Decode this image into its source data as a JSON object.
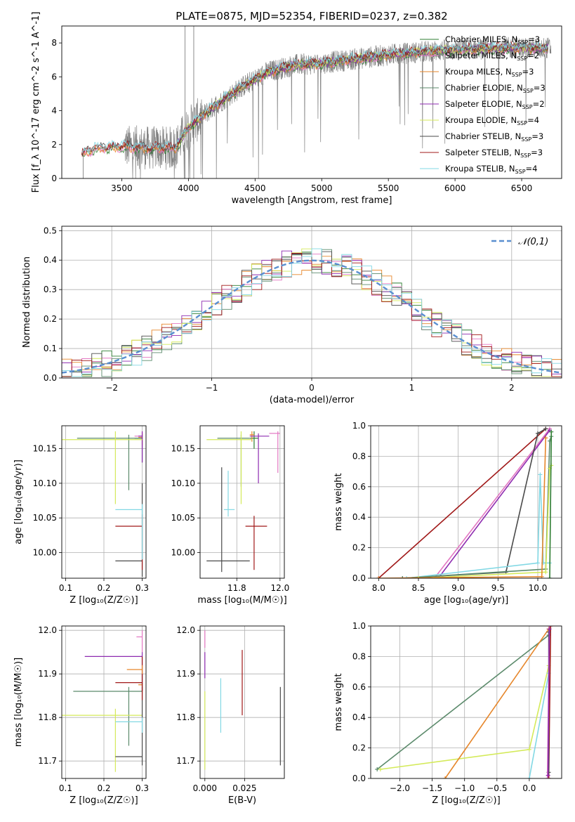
{
  "colors": {
    "Chabrier MILES": "#2e7d32",
    "Salpeter MILES": "#e377c2",
    "Kroupa MILES": "#e6862a",
    "Chabrier ELODIE": "#5b8a6b",
    "Salpeter ELODIE": "#8e2bb0",
    "Kroupa ELODIE": "#d4ea5a",
    "Chabrier STELIB": "#4a4a4a",
    "Salpeter STELIB": "#a01818",
    "Kroupa STELIB": "#82d8e4",
    "gaussian": "#5a8fd0"
  },
  "chart_data": [
    {
      "id": "spectrum",
      "type": "line",
      "title": "PLATE=0875, MJD=52354, FIBERID=0237, z=0.382",
      "xlabel": "wavelength [Angstrom, rest frame]",
      "ylabel": "Flux [f_λ 10^-17 erg cm^-2 s^-1 A^-1]",
      "xlim": [
        3050,
        6800
      ],
      "ylim": [
        0,
        9
      ],
      "xticks": [
        3500,
        4000,
        4500,
        5000,
        5500,
        6000,
        6500
      ],
      "yticks": [
        0,
        2,
        4,
        6,
        8
      ],
      "legend_position": "upper-right",
      "legend": [
        {
          "series": "Chabrier MILES",
          "label": "Chabrier MILES, N",
          "sub": "SSP",
          "tail": "=3"
        },
        {
          "series": "Salpeter MILES",
          "label": "Salpeter MILES, N",
          "sub": "SSP",
          "tail": "=2"
        },
        {
          "series": "Kroupa MILES",
          "label": "Kroupa MILES, N",
          "sub": "SSP",
          "tail": "=3"
        },
        {
          "series": "Chabrier ELODIE",
          "label": "Chabrier ELODIE, N",
          "sub": "SSP",
          "tail": "=3"
        },
        {
          "series": "Salpeter ELODIE",
          "label": "Salpeter ELODIE, N",
          "sub": "SSP",
          "tail": "=2"
        },
        {
          "series": "Kroupa ELODIE",
          "label": "Kroupa ELODIE, N",
          "sub": "SSP",
          "tail": "=4"
        },
        {
          "series": "Chabrier STELIB",
          "label": "Chabrier STELIB, N",
          "sub": "SSP",
          "tail": "=3"
        },
        {
          "series": "Salpeter STELIB",
          "label": "Salpeter STELIB, N",
          "sub": "SSP",
          "tail": "=3"
        },
        {
          "series": "Kroupa STELIB",
          "label": "Kroupa STELIB, N",
          "sub": "SSP",
          "tail": "=4"
        }
      ],
      "observed_color": "#808080",
      "continuum_knots": [
        [
          3200,
          1.4
        ],
        [
          3300,
          1.8
        ],
        [
          3500,
          1.9
        ],
        [
          3700,
          1.8
        ],
        [
          3900,
          1.8
        ],
        [
          4000,
          3.0
        ],
        [
          4200,
          4.3
        ],
        [
          4400,
          5.4
        ],
        [
          4600,
          6.3
        ],
        [
          4800,
          6.7
        ],
        [
          5000,
          6.8
        ],
        [
          5200,
          7.0
        ],
        [
          5500,
          7.3
        ],
        [
          5800,
          7.5
        ],
        [
          6000,
          7.6
        ],
        [
          6300,
          7.7
        ],
        [
          6700,
          7.7
        ]
      ]
    },
    {
      "id": "residuals",
      "type": "histogram",
      "xlabel": "(data-model)/error",
      "ylabel": "Normed distribution",
      "xlim": [
        -2.5,
        2.5
      ],
      "ylim": [
        0,
        0.515
      ],
      "xticks": [
        -2,
        -1,
        0,
        1,
        2
      ],
      "yticks": [
        0,
        0.1,
        0.2,
        0.3,
        0.4,
        0.5
      ],
      "ytick_labels": [
        "0.0",
        "0.1",
        "0.2",
        "0.3",
        "0.4",
        "0.5"
      ],
      "legend_label": "𝒩(0,1)",
      "legend_position": "upper-right",
      "bin_width": 0.1,
      "bin_start": -2.5
    },
    {
      "id": "age_vs_Z",
      "type": "errorbar",
      "xlabel": "Z [log₁₀(Z/Z☉)]",
      "ylabel": "age  [log₁₀(age/yr)]",
      "xlim": [
        0.09,
        0.31
      ],
      "ylim": [
        9.963,
        10.183
      ],
      "xticks": [
        0.1,
        0.2,
        0.3
      ],
      "xtick_labels": [
        "0.1",
        "0.2",
        "0.3"
      ],
      "yticks": [
        10.0,
        10.05,
        10.1,
        10.15
      ],
      "ytick_labels": [
        "10.00",
        "10.05",
        "10.10",
        "10.15"
      ],
      "points": [
        {
          "series": "Chabrier MILES",
          "x": 0.3,
          "y": 10.165,
          "xlo": 0.28,
          "xhi": 0.3,
          "ylo": 10.13,
          "yhi": 10.17
        },
        {
          "series": "Salpeter MILES",
          "x": 0.3,
          "y": 10.168,
          "xlo": 0.28,
          "xhi": 0.3,
          "ylo": 10.15,
          "yhi": 10.175
        },
        {
          "series": "Kroupa MILES",
          "x": 0.3,
          "y": 10.166,
          "xlo": 0.29,
          "xhi": 0.3,
          "ylo": 10.155,
          "yhi": 10.172
        },
        {
          "series": "Chabrier ELODIE",
          "x": 0.265,
          "y": 10.165,
          "xlo": 0.13,
          "xhi": 0.3,
          "ylo": 10.09,
          "yhi": 10.17
        },
        {
          "series": "Salpeter ELODIE",
          "x": 0.3,
          "y": 10.168,
          "xlo": 0.29,
          "xhi": 0.3,
          "ylo": 10.13,
          "yhi": 10.175
        },
        {
          "series": "Kroupa ELODIE",
          "x": 0.23,
          "y": 10.163,
          "xlo": 0.09,
          "xhi": 0.3,
          "ylo": 10.07,
          "yhi": 10.175
        },
        {
          "series": "Chabrier STELIB",
          "x": 0.3,
          "y": 9.988,
          "xlo": 0.23,
          "xhi": 0.3,
          "ylo": 9.965,
          "yhi": 10.1
        },
        {
          "series": "Salpeter STELIB",
          "x": 0.3,
          "y": 10.038,
          "xlo": 0.23,
          "xhi": 0.3,
          "ylo": 9.975,
          "yhi": 10.055
        },
        {
          "series": "Kroupa STELIB",
          "x": 0.3,
          "y": 10.062,
          "xlo": 0.23,
          "xhi": 0.3,
          "ylo": 9.99,
          "yhi": 10.07
        }
      ]
    },
    {
      "id": "age_vs_mass",
      "type": "errorbar",
      "xlabel": "mass [log₁₀(M/M☉)]",
      "ylabel": "",
      "xlim": [
        11.63,
        12.02
      ],
      "ylim": [
        9.963,
        10.183
      ],
      "xticks": [
        11.8,
        12.0
      ],
      "xtick_labels": [
        "11.8",
        "12.0"
      ],
      "yticks": [
        10.0,
        10.05,
        10.1,
        10.15
      ],
      "ytick_labels": [
        "10.00",
        "10.05",
        "10.10",
        "10.15"
      ],
      "points": [
        {
          "series": "Chabrier MILES",
          "x": 11.88,
          "y": 10.165,
          "xlo": 11.86,
          "xhi": 11.9,
          "ylo": 10.15,
          "yhi": 10.175
        },
        {
          "series": "Salpeter MILES",
          "x": 11.99,
          "y": 10.172,
          "xlo": 11.95,
          "xhi": 12.0,
          "ylo": 10.115,
          "yhi": 10.175
        },
        {
          "series": "Kroupa MILES",
          "x": 11.87,
          "y": 10.17,
          "xlo": 11.86,
          "xhi": 11.88,
          "ylo": 10.16,
          "yhi": 10.175
        },
        {
          "series": "Chabrier ELODIE",
          "x": 11.82,
          "y": 10.165,
          "xlo": 11.71,
          "xhi": 11.86,
          "ylo": 10.095,
          "yhi": 10.17
        },
        {
          "series": "Salpeter ELODIE",
          "x": 11.9,
          "y": 10.168,
          "xlo": 11.86,
          "xhi": 11.95,
          "ylo": 10.1,
          "yhi": 10.172
        },
        {
          "series": "Kroupa ELODIE",
          "x": 11.82,
          "y": 10.163,
          "xlo": 11.66,
          "xhi": 11.87,
          "ylo": 10.07,
          "yhi": 10.175
        },
        {
          "series": "Chabrier STELIB",
          "x": 11.73,
          "y": 9.988,
          "xlo": 11.66,
          "xhi": 11.86,
          "ylo": 9.972,
          "yhi": 10.123
        },
        {
          "series": "Salpeter STELIB",
          "x": 11.88,
          "y": 10.038,
          "xlo": 11.84,
          "xhi": 11.94,
          "ylo": 9.975,
          "yhi": 10.053
        },
        {
          "series": "Kroupa STELIB",
          "x": 11.76,
          "y": 10.062,
          "xlo": 11.74,
          "xhi": 11.79,
          "ylo": 10.052,
          "yhi": 10.118
        }
      ]
    },
    {
      "id": "mass_weight_vs_age",
      "type": "line",
      "xlabel": "age  [log₁₀(age/yr)]",
      "ylabel": "mass weight",
      "xlim": [
        7.9,
        10.3
      ],
      "ylim": [
        0,
        1
      ],
      "xticks": [
        8.0,
        8.5,
        9.0,
        9.5,
        10.0
      ],
      "xtick_labels": [
        "8.0",
        "8.5",
        "9.0",
        "9.5",
        "10.0"
      ],
      "yticks": [
        0,
        0.2,
        0.4,
        0.6,
        0.8,
        1.0
      ],
      "ytick_labels": [
        "0.0",
        "0.2",
        "0.4",
        "0.6",
        "0.8",
        "1.0"
      ],
      "lines": [
        {
          "series": "Salpeter STELIB",
          "x": [
            8.0,
            10.1
          ],
          "y": [
            0.0,
            0.98
          ]
        },
        {
          "series": "Salpeter MILES",
          "x": [
            8.7,
            10.15
          ],
          "y": [
            0.0,
            0.98
          ]
        },
        {
          "series": "Salpeter ELODIE",
          "x": [
            8.75,
            10.15
          ],
          "y": [
            0.0,
            0.97
          ]
        },
        {
          "series": "Chabrier STELIB",
          "x": [
            8.3,
            9.6,
            10.0,
            10.1
          ],
          "y": [
            0.0,
            0.04,
            0.95,
            0.98
          ]
        },
        {
          "series": "Kroupa STELIB",
          "x": [
            8.35,
            10.0,
            10.03,
            10.07,
            10.15
          ],
          "y": [
            0.0,
            0.1,
            0.68,
            0.1,
            0.1
          ]
        },
        {
          "series": "Chabrier ELODIE",
          "x": [
            8.3,
            10.1,
            10.15,
            10.17
          ],
          "y": [
            0.0,
            0.06,
            0.9,
            0.93
          ]
        },
        {
          "series": "Kroupa ELODIE",
          "x": [
            8.5,
            10.1,
            10.15,
            10.17
          ],
          "y": [
            0.0,
            0.04,
            0.72,
            0.74
          ]
        },
        {
          "series": "Kroupa MILES",
          "x": [
            8.0,
            10.05,
            10.1
          ],
          "y": [
            0.0,
            0.01,
            0.92
          ]
        },
        {
          "series": "Chabrier MILES",
          "x": [
            10.15,
            10.17
          ],
          "y": [
            0.0,
            0.96
          ]
        }
      ]
    },
    {
      "id": "mass_vs_Z",
      "type": "errorbar",
      "xlabel": "Z [log₁₀(Z/Z☉)]",
      "ylabel": "mass [log₁₀(M/M☉)]",
      "xlim": [
        0.09,
        0.31
      ],
      "ylim": [
        11.66,
        12.01
      ],
      "xticks": [
        0.1,
        0.2,
        0.3
      ],
      "xtick_labels": [
        "0.1",
        "0.2",
        "0.3"
      ],
      "yticks": [
        11.7,
        11.8,
        11.9,
        12.0
      ],
      "ytick_labels": [
        "11.7",
        "11.8",
        "11.9",
        "12.0"
      ],
      "points": [
        {
          "series": "Chabrier MILES",
          "x": 0.3,
          "y": 11.88,
          "xlo": 0.29,
          "xhi": 0.3,
          "ylo": 11.86,
          "yhi": 11.9
        },
        {
          "series": "Salpeter MILES",
          "x": 0.3,
          "y": 11.985,
          "xlo": 0.285,
          "xhi": 0.3,
          "ylo": 11.95,
          "yhi": 12.0
        },
        {
          "series": "Kroupa MILES",
          "x": 0.3,
          "y": 11.875,
          "xlo": 0.29,
          "xhi": 0.3,
          "ylo": 11.86,
          "yhi": 11.88
        },
        {
          "series": "Chabrier ELODIE",
          "x": 0.265,
          "y": 11.86,
          "xlo": 0.12,
          "xhi": 0.3,
          "ylo": 11.735,
          "yhi": 11.87
        },
        {
          "series": "Salpeter ELODIE",
          "x": 0.3,
          "y": 11.94,
          "xlo": 0.15,
          "xhi": 0.3,
          "ylo": 11.86,
          "yhi": 11.95
        },
        {
          "series": "Kroupa ELODIE",
          "x": 0.23,
          "y": 11.805,
          "xlo": 0.09,
          "xhi": 0.3,
          "ylo": 11.675,
          "yhi": 11.82
        },
        {
          "series": "Chabrier STELIB",
          "x": 0.3,
          "y": 11.71,
          "xlo": 0.23,
          "xhi": 0.3,
          "ylo": 11.69,
          "yhi": 11.87
        },
        {
          "series": "Salpeter STELIB",
          "x": 0.3,
          "y": 11.88,
          "xlo": 0.23,
          "xhi": 0.3,
          "ylo": 11.84,
          "yhi": 11.94
        },
        {
          "series": "Kroupa STELIB",
          "x": 0.3,
          "y": 11.79,
          "xlo": 0.23,
          "xhi": 0.3,
          "ylo": 11.765,
          "yhi": 11.8
        },
        {
          "series": "Kroupa MILES",
          "x": 0.3,
          "y": 11.91,
          "xlo": 0.26,
          "xhi": 0.3,
          "ylo": 11.9,
          "yhi": 11.92
        }
      ]
    },
    {
      "id": "mass_vs_ebv",
      "type": "errorbar",
      "xlabel": "E(B-V)",
      "ylabel": "",
      "xlim": [
        -0.003,
        0.05
      ],
      "ylim": [
        11.66,
        12.01
      ],
      "xticks": [
        0.0,
        0.025
      ],
      "xtick_labels": [
        "0.000",
        "0.025"
      ],
      "yticks": [
        11.7,
        11.8,
        11.9,
        12.0
      ],
      "ytick_labels": [
        "11.7",
        "11.8",
        "11.9",
        "12.0"
      ],
      "points": [
        {
          "series": "Salpeter ELODIE",
          "x": 0.0,
          "y": 11.92,
          "xlo": 0.0,
          "xhi": 0.0,
          "ylo": 11.89,
          "yhi": 11.95
        },
        {
          "series": "Kroupa ELODIE",
          "x": 0.0,
          "y": 11.8,
          "xlo": 0.0,
          "xhi": 0.0,
          "ylo": 11.68,
          "yhi": 11.86
        },
        {
          "series": "Salpeter MILES",
          "x": 0.0,
          "y": 11.98,
          "xlo": 0.0,
          "xhi": 0.0,
          "ylo": 11.96,
          "yhi": 12.0
        },
        {
          "series": "Kroupa STELIB",
          "x": 0.01,
          "y": 11.83,
          "xlo": 0.01,
          "xhi": 0.01,
          "ylo": 11.765,
          "yhi": 11.89
        },
        {
          "series": "Salpeter STELIB",
          "x": 0.0235,
          "y": 11.88,
          "xlo": 0.0235,
          "xhi": 0.0235,
          "ylo": 11.805,
          "yhi": 11.955
        },
        {
          "series": "Chabrier STELIB",
          "x": 0.0475,
          "y": 11.78,
          "xlo": 0.0475,
          "xhi": 0.0475,
          "ylo": 11.69,
          "yhi": 11.87
        }
      ]
    },
    {
      "id": "mass_weight_vs_Z",
      "type": "line",
      "xlabel": "Z [log₁₀(Z/Z☉)]",
      "ylabel": "mass weight",
      "xlim": [
        -2.45,
        0.5
      ],
      "ylim": [
        0,
        1
      ],
      "xticks": [
        -2.0,
        -1.5,
        -1.0,
        -0.5,
        0.0
      ],
      "xtick_labels": [
        "−2.0",
        "−1.5",
        "−1.0",
        "−0.5",
        "0.0"
      ],
      "yticks": [
        0,
        0.2,
        0.4,
        0.6,
        0.8,
        1.0
      ],
      "ytick_labels": [
        "0.0",
        "0.2",
        "0.4",
        "0.6",
        "0.8",
        "1.0"
      ],
      "lines": [
        {
          "series": "Chabrier ELODIE",
          "x": [
            -2.35,
            0.3
          ],
          "y": [
            0.06,
            0.94
          ]
        },
        {
          "series": "Kroupa ELODIE",
          "x": [
            -2.3,
            0.0,
            0.3
          ],
          "y": [
            0.06,
            0.19,
            0.74
          ]
        },
        {
          "series": "Kroupa MILES",
          "x": [
            -1.3,
            0.3
          ],
          "y": [
            0.0,
            0.98
          ]
        },
        {
          "series": "Kroupa STELIB",
          "x": [
            0.0,
            0.3
          ],
          "y": [
            0.0,
            0.69
          ]
        },
        {
          "series": "Salpeter STELIB",
          "x": [
            0.3,
            0.33
          ],
          "y": [
            0.0,
            1.0
          ]
        },
        {
          "series": "Chabrier STELIB",
          "x": [
            0.3,
            0.3
          ],
          "y": [
            0.04,
            0.96
          ]
        },
        {
          "series": "Salpeter MILES",
          "x": [
            0.28,
            0.31
          ],
          "y": [
            0.0,
            1.0
          ]
        },
        {
          "series": "Salpeter ELODIE",
          "x": [
            0.29,
            0.31
          ],
          "y": [
            0.02,
            0.98
          ]
        }
      ]
    }
  ]
}
